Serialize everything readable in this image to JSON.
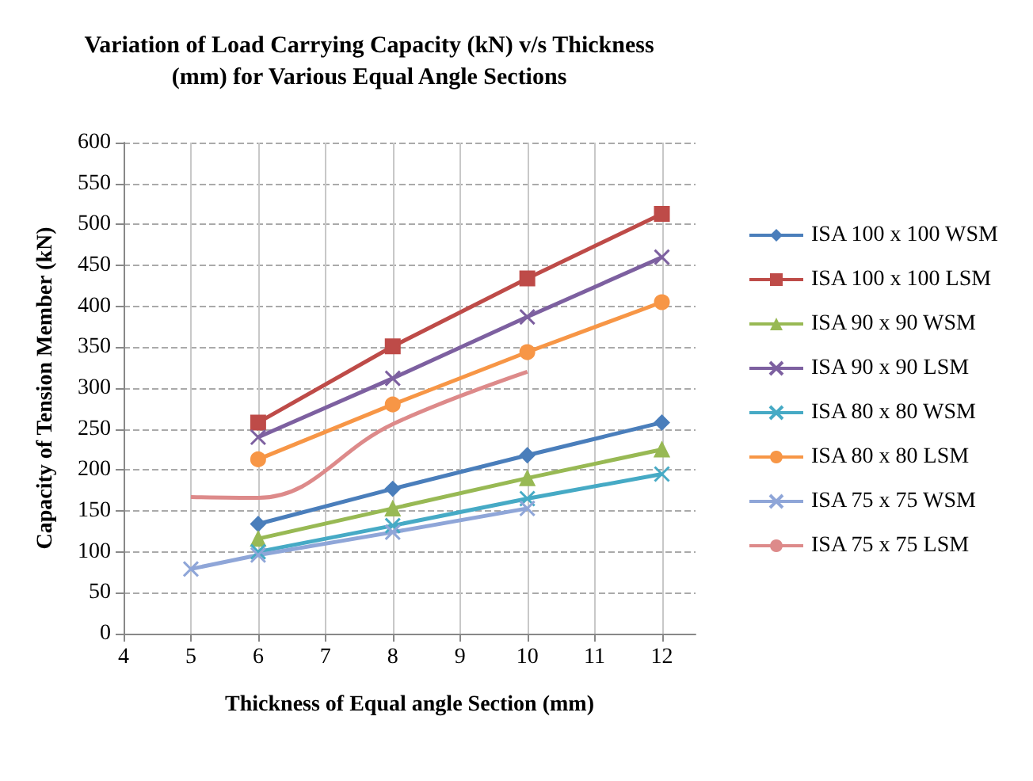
{
  "chart_data": {
    "type": "line",
    "title": "Variation of Load Carrying Capacity (kN) v/s Thickness\n(mm) for Various Equal Angle Sections",
    "xlabel": "Thickness of Equal angle Section (mm)",
    "ylabel": "Capacity of Tension Member (kN)",
    "xlim": [
      4,
      12.5
    ],
    "xticks": [
      4,
      5,
      6,
      7,
      8,
      9,
      10,
      11,
      12
    ],
    "ylim": [
      0,
      600
    ],
    "yticks": [
      0,
      50,
      100,
      150,
      200,
      250,
      300,
      350,
      400,
      450,
      500,
      550,
      600
    ],
    "grid": true,
    "legend": "right",
    "series": [
      {
        "name": "ISA 100 x 100 WSM",
        "color": "#4a7ebb",
        "marker": "diamond",
        "x": [
          6,
          8,
          10,
          12
        ],
        "values": [
          134,
          177,
          218,
          258
        ]
      },
      {
        "name": "ISA 100 x 100 LSM",
        "color": "#be4b48",
        "marker": "square",
        "x": [
          6,
          8,
          10,
          12
        ],
        "values": [
          258,
          351,
          434,
          513
        ]
      },
      {
        "name": "ISA 90 x 90 WSM",
        "color": "#98b954",
        "marker": "triangle",
        "x": [
          6,
          8,
          10,
          12
        ],
        "values": [
          116,
          153,
          190,
          225
        ]
      },
      {
        "name": "ISA 90 x 90 LSM",
        "color": "#7d60a0",
        "marker": "cross",
        "x": [
          6,
          8,
          10,
          12
        ],
        "values": [
          240,
          312,
          387,
          460
        ]
      },
      {
        "name": "ISA 80 x 80 WSM",
        "color": "#46aac5",
        "marker": "cross",
        "x": [
          6,
          8,
          10,
          12
        ],
        "values": [
          100,
          132,
          165,
          195
        ]
      },
      {
        "name": "ISA 80 x 80 LSM",
        "color": "#f79646",
        "marker": "circle",
        "x": [
          6,
          8,
          10,
          12
        ],
        "values": [
          213,
          280,
          344,
          405
        ]
      },
      {
        "name": "ISA 75 x 75 WSM",
        "color": "#8fa6d8",
        "marker": "cross",
        "x": [
          5,
          6,
          8,
          10
        ],
        "values": [
          79,
          96,
          124,
          153
        ]
      },
      {
        "name": "ISA 75 x 75 LSM",
        "color": "#dd8a8a",
        "marker": "none",
        "x": [
          5,
          6,
          8,
          10
        ],
        "values": [
          167,
          166,
          256,
          320
        ]
      }
    ]
  }
}
